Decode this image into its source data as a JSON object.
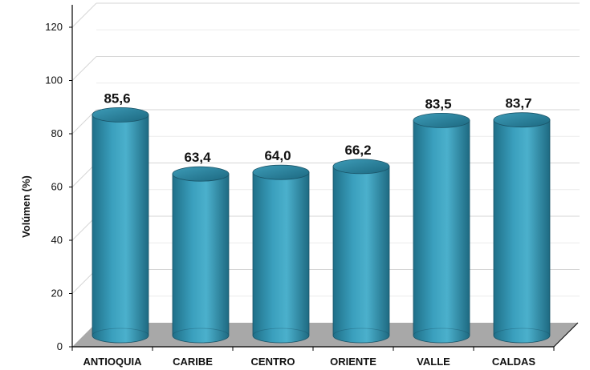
{
  "chart_data": {
    "type": "bar",
    "categories": [
      "ANTIOQUIA",
      "CARIBE",
      "CENTRO",
      "ORIENTE",
      "VALLE",
      "CALDAS"
    ],
    "values": [
      85.6,
      63.4,
      64.0,
      66.2,
      83.5,
      83.7
    ],
    "data_labels": [
      "85,6",
      "63,4",
      "64,0",
      "66,2",
      "83,5",
      "83,7"
    ],
    "ylabel": "Volúmen (%)",
    "ylim": [
      0,
      120
    ],
    "yticks": [
      0,
      20,
      40,
      60,
      80,
      100,
      120
    ],
    "grid": true,
    "style": "3d-cylinder",
    "bar_color": "#2e8aa6",
    "floor_color": "#a8a8a8"
  }
}
